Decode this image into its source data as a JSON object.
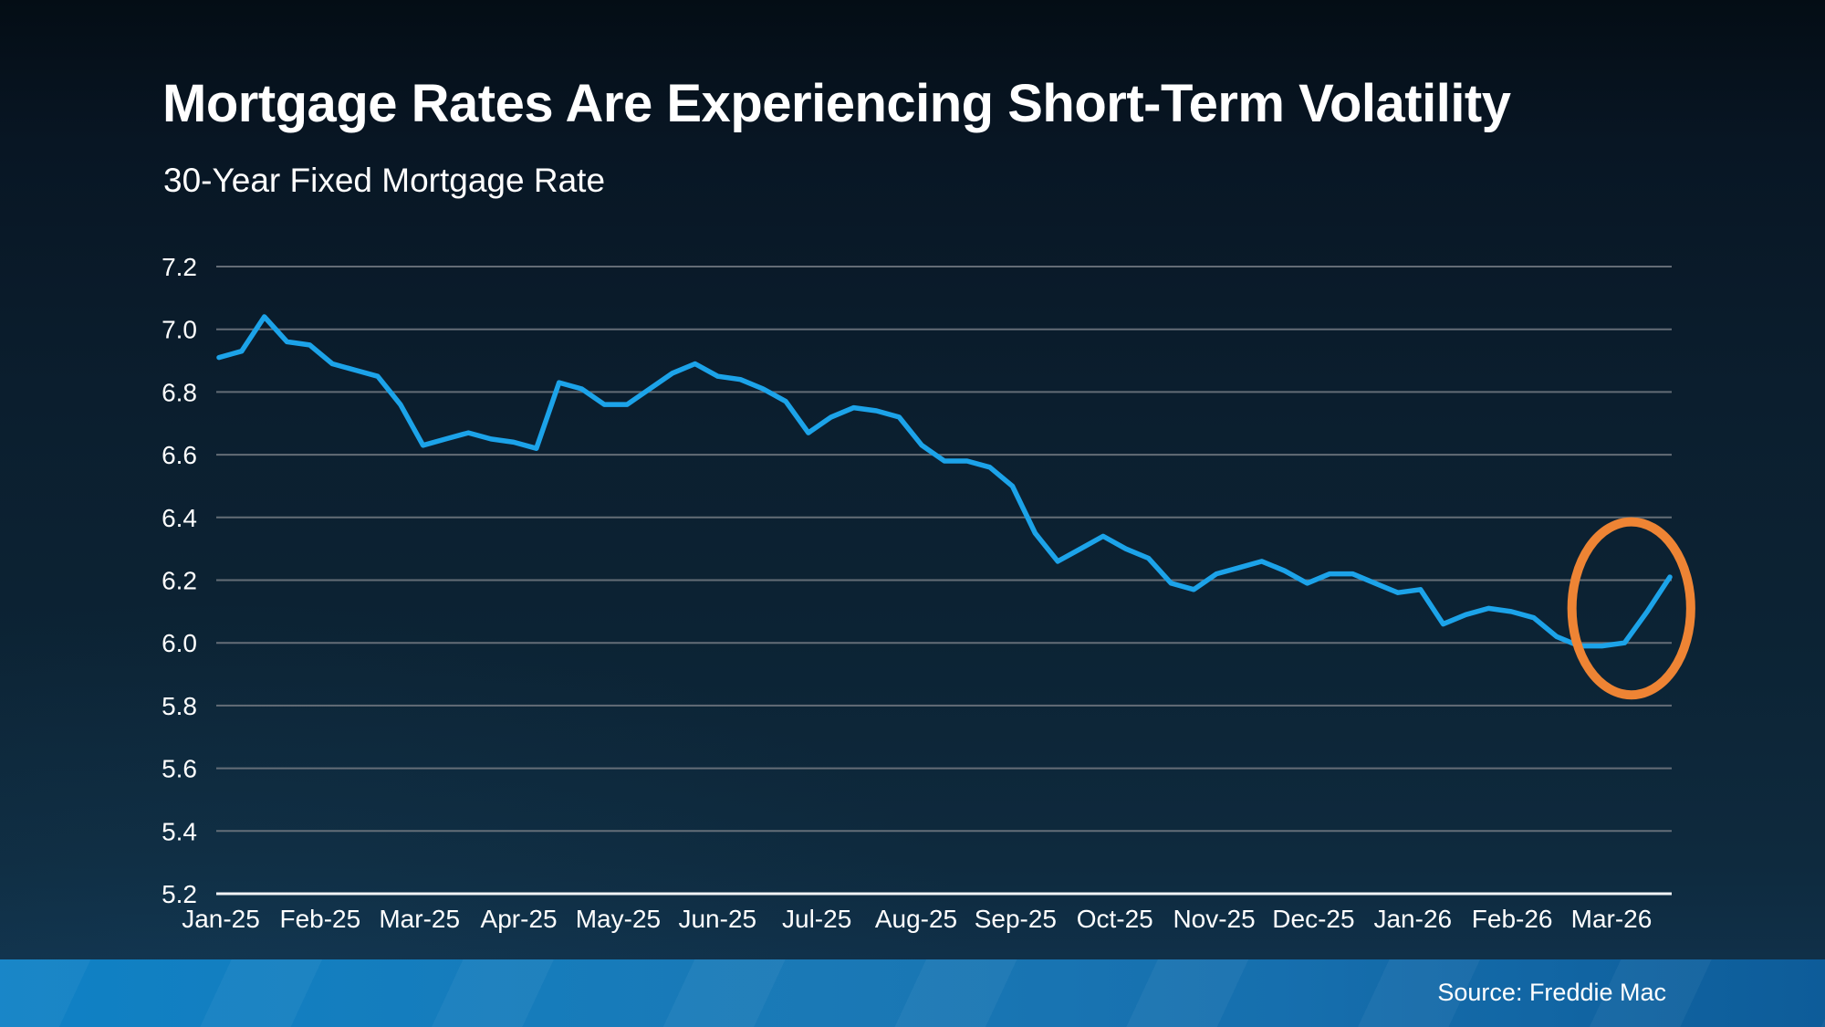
{
  "slide": {
    "title": "Mortgage Rates Are Experiencing Short-Term Volatility",
    "subtitle": "30-Year Fixed Mortgage Rate",
    "source": "Source: Freddie Mac"
  },
  "colors": {
    "background_top": "#040d15",
    "background_bottom": "#113450",
    "line": "#1CA3E9",
    "gridline": "#6E767E",
    "axis_line": "#F2F4F6",
    "text": "#FFFFFF",
    "highlight": "#EE8434",
    "footer_bar_left": "#0F81C5",
    "footer_bar_right": "#0D5C99"
  },
  "chart_data": {
    "type": "line",
    "title": "Mortgage Rates Are Experiencing Short-Term Volatility",
    "subtitle": "30-Year Fixed Mortgage Rate",
    "xlabel": "",
    "ylabel": "",
    "categories": [
      "Jan-25",
      "Feb-25",
      "Mar-25",
      "Apr-25",
      "May-25",
      "Jun-25",
      "Jul-25",
      "Aug-25",
      "Sep-25",
      "Oct-25",
      "Nov-25",
      "Dec-25",
      "Jan-26",
      "Feb-26",
      "Mar-26"
    ],
    "weeks_per_month": [
      5,
      4,
      4,
      4,
      5,
      4,
      5,
      4,
      4,
      5,
      4,
      4,
      5,
      4,
      4
    ],
    "series": [
      {
        "name": "30-Year Fixed Mortgage Rate (weekly)",
        "values": [
          6.91,
          6.93,
          7.04,
          6.96,
          6.95,
          6.89,
          6.87,
          6.85,
          6.76,
          6.63,
          6.65,
          6.67,
          6.65,
          6.64,
          6.62,
          6.83,
          6.81,
          6.76,
          6.76,
          6.81,
          6.86,
          6.89,
          6.85,
          6.84,
          6.81,
          6.77,
          6.67,
          6.72,
          6.75,
          6.74,
          6.72,
          6.63,
          6.58,
          6.58,
          6.56,
          6.5,
          6.35,
          6.26,
          6.3,
          6.34,
          6.3,
          6.27,
          6.19,
          6.17,
          6.22,
          6.24,
          6.26,
          6.23,
          6.19,
          6.22,
          6.22,
          6.19,
          6.16,
          6.17,
          6.06,
          6.09,
          6.11,
          6.1,
          6.08,
          6.02,
          5.99,
          5.99,
          6.0,
          6.1,
          6.21
        ]
      }
    ],
    "ylim": [
      5.2,
      7.2
    ],
    "y_ticks": [
      "7.2",
      "7.0",
      "6.8",
      "6.6",
      "6.4",
      "6.2",
      "6.0",
      "5.8",
      "5.6",
      "5.4",
      "5.2"
    ],
    "grid": "horizontal-only",
    "legend": "none",
    "annotation": {
      "type": "ellipse-highlight",
      "color": "#EE8434",
      "center_week_index": 62.3,
      "center_value": 6.11,
      "radius_weeks": 2.62,
      "radius_value": 0.276
    }
  }
}
